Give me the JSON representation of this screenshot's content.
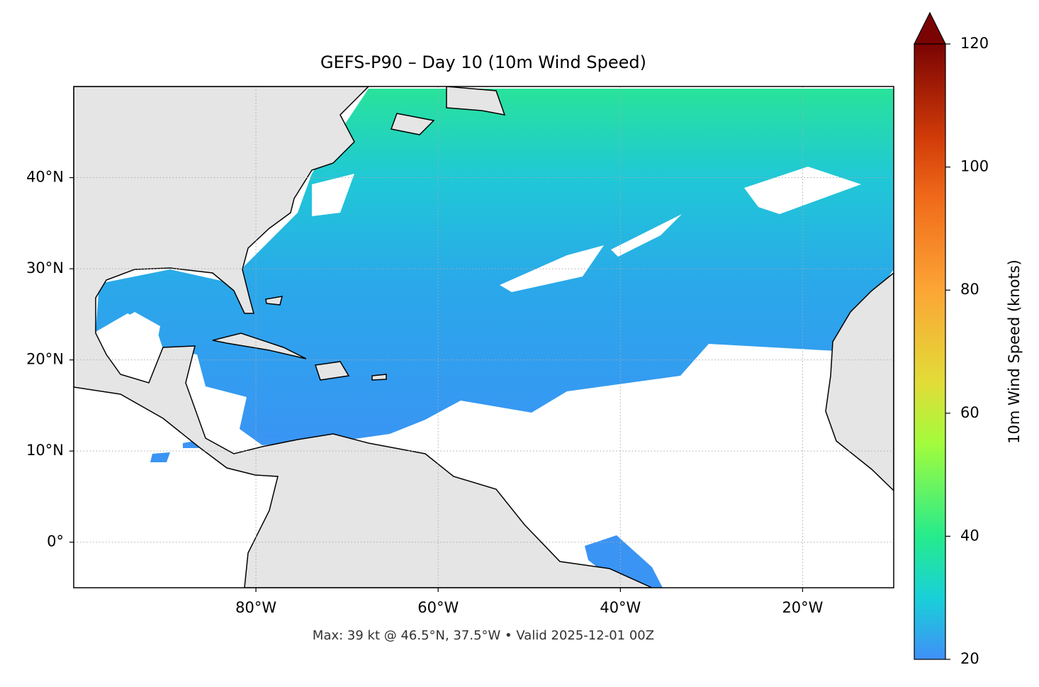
{
  "title": "GEFS-P90 – Day 10 (10m Wind Speed)",
  "footer": "Max: 39 kt @ 46.5°N, 37.5°W • Valid 2025-12-01 00Z",
  "map": {
    "lon_range": [
      -100,
      -10
    ],
    "lat_range": [
      -5,
      50
    ],
    "lon_ticks": [
      {
        "value": -80,
        "label": "80°W"
      },
      {
        "value": -60,
        "label": "60°W"
      },
      {
        "value": -40,
        "label": "40°W"
      },
      {
        "value": -20,
        "label": "20°W"
      }
    ],
    "lat_ticks": [
      {
        "value": 0,
        "label": "0°"
      },
      {
        "value": 10,
        "label": "10°N"
      },
      {
        "value": 20,
        "label": "20°N"
      },
      {
        "value": 30,
        "label": "30°N"
      },
      {
        "value": 40,
        "label": "40°N"
      }
    ]
  },
  "colorbar": {
    "label": "10m Wind Speed (knots)",
    "range": [
      20,
      120
    ],
    "ticks": [
      20,
      40,
      60,
      80,
      100,
      120
    ]
  }
}
